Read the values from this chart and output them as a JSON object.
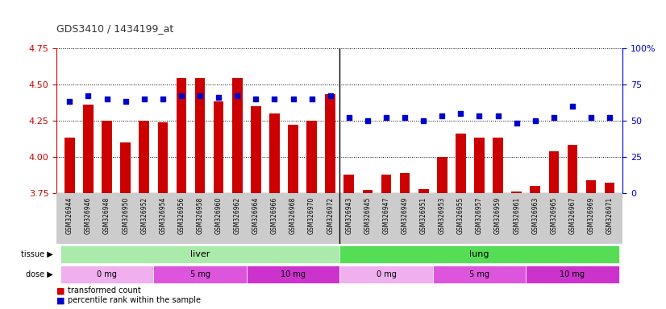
{
  "title": "GDS3410 / 1434199_at",
  "categories": [
    "GSM326944",
    "GSM326946",
    "GSM326948",
    "GSM326950",
    "GSM326952",
    "GSM326954",
    "GSM326956",
    "GSM326958",
    "GSM326960",
    "GSM326962",
    "GSM326964",
    "GSM326966",
    "GSM326968",
    "GSM326970",
    "GSM326972",
    "GSM326943",
    "GSM326945",
    "GSM326947",
    "GSM326949",
    "GSM326951",
    "GSM326953",
    "GSM326955",
    "GSM326957",
    "GSM326959",
    "GSM326961",
    "GSM326963",
    "GSM326965",
    "GSM326967",
    "GSM326969",
    "GSM326971"
  ],
  "bar_values": [
    4.13,
    4.36,
    4.25,
    4.1,
    4.25,
    4.24,
    4.54,
    4.54,
    4.38,
    4.54,
    4.35,
    4.3,
    4.22,
    4.25,
    4.43,
    3.88,
    3.77,
    3.88,
    3.89,
    3.78,
    4.0,
    4.16,
    4.13,
    4.13,
    3.76,
    3.8,
    4.04,
    4.08,
    3.84,
    3.82
  ],
  "percentile_values": [
    63,
    67,
    65,
    63,
    65,
    65,
    67,
    67,
    66,
    67,
    65,
    65,
    65,
    65,
    67,
    52,
    50,
    52,
    52,
    50,
    53,
    55,
    53,
    53,
    48,
    50,
    52,
    60,
    52,
    52
  ],
  "bar_color": "#cc0000",
  "dot_color": "#0000cc",
  "ylim_left": [
    3.75,
    4.75
  ],
  "ylim_right": [
    0,
    100
  ],
  "yticks_left": [
    3.75,
    4.0,
    4.25,
    4.5,
    4.75
  ],
  "yticks_right": [
    0,
    25,
    50,
    75,
    100
  ],
  "title_color": "#333333",
  "left_axis_color": "#cc0000",
  "right_axis_color": "#0000cc",
  "tissue_groups": [
    {
      "label": "liver",
      "start": 0,
      "end": 15,
      "color": "#aaeaaa"
    },
    {
      "label": "lung",
      "start": 15,
      "end": 30,
      "color": "#55dd55"
    }
  ],
  "dose_groups": [
    {
      "label": "0 mg",
      "start": 0,
      "end": 5,
      "color": "#f0b0f0"
    },
    {
      "label": "5 mg",
      "start": 5,
      "end": 10,
      "color": "#dd55dd"
    },
    {
      "label": "10 mg",
      "start": 10,
      "end": 15,
      "color": "#cc33cc"
    },
    {
      "label": "0 mg",
      "start": 15,
      "end": 20,
      "color": "#f0b0f0"
    },
    {
      "label": "5 mg",
      "start": 20,
      "end": 25,
      "color": "#dd55dd"
    },
    {
      "label": "10 mg",
      "start": 25,
      "end": 30,
      "color": "#cc33cc"
    }
  ],
  "legend_items": [
    {
      "label": "transformed count",
      "color": "#cc0000"
    },
    {
      "label": "percentile rank within the sample",
      "color": "#0000cc"
    }
  ],
  "xtick_bg": "#cccccc",
  "chart_bg": "#ffffff",
  "grid_color": "#000000",
  "sep_color": "#000000"
}
